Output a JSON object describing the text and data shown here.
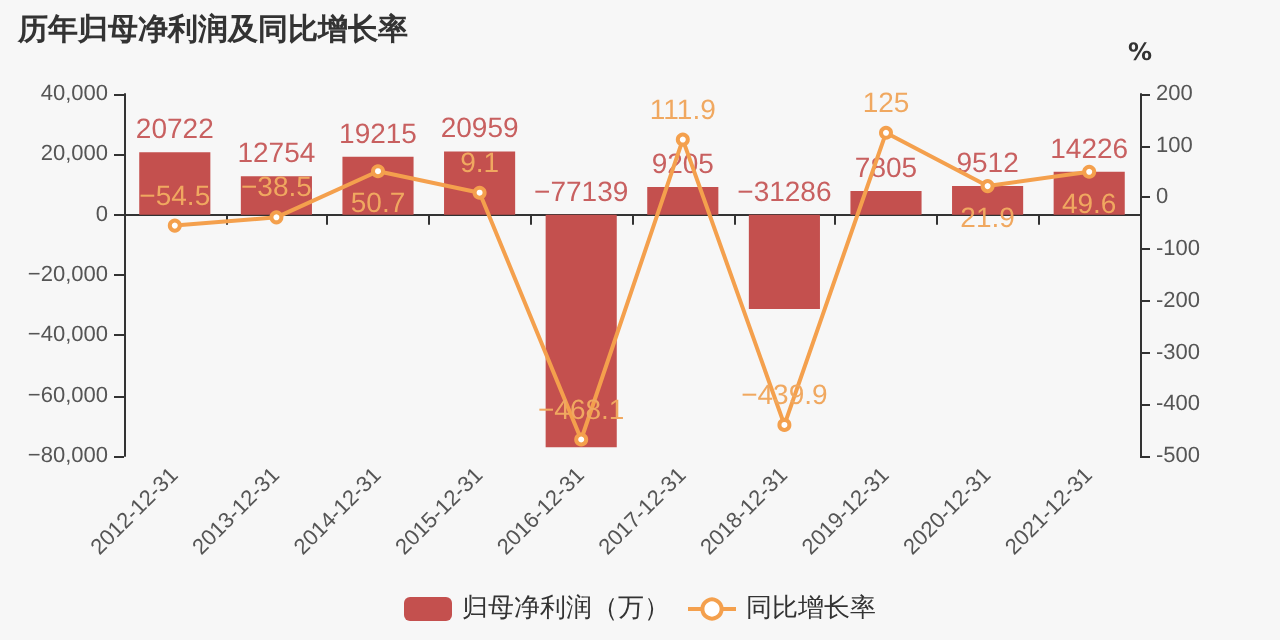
{
  "chart_data": {
    "type": "bar",
    "title": "历年归母净利润及同比增长率",
    "y2label": "%",
    "categories": [
      "2012-12-31",
      "2013-12-31",
      "2014-12-31",
      "2015-12-31",
      "2016-12-31",
      "2017-12-31",
      "2018-12-31",
      "2019-12-31",
      "2020-12-31",
      "2021-12-31"
    ],
    "series": [
      {
        "name": "归母净利润（万）",
        "color": "#c4504e",
        "values": [
          20722,
          12754,
          19215,
          20959,
          -77139,
          9205,
          -31286,
          7805,
          9512,
          14226
        ]
      },
      {
        "name": "同比增长率",
        "type": "line",
        "axis": "y2",
        "color": "#f4a04d",
        "values": [
          -54.5,
          -38.5,
          50.7,
          9.1,
          -468.1,
          111.9,
          -439.9,
          125,
          21.9,
          49.6
        ]
      }
    ],
    "ylim": [
      -80000,
      40000
    ],
    "yticks": [
      {
        "value": -80000,
        "label": "−80,000"
      },
      {
        "value": -60000,
        "label": "−60,000"
      },
      {
        "value": -40000,
        "label": "−40,000"
      },
      {
        "value": -20000,
        "label": "−20,000"
      },
      0,
      {
        "value": 20000,
        "label": "20,000"
      },
      {
        "value": 40000,
        "label": "40,000"
      }
    ],
    "y2lim": [
      -500,
      200
    ],
    "y2ticks": [
      -500,
      -400,
      -300,
      -200,
      -100,
      0,
      100,
      200
    ],
    "data_labels": true,
    "legend": "bottom",
    "marker": "circle",
    "line_style": "solid"
  }
}
